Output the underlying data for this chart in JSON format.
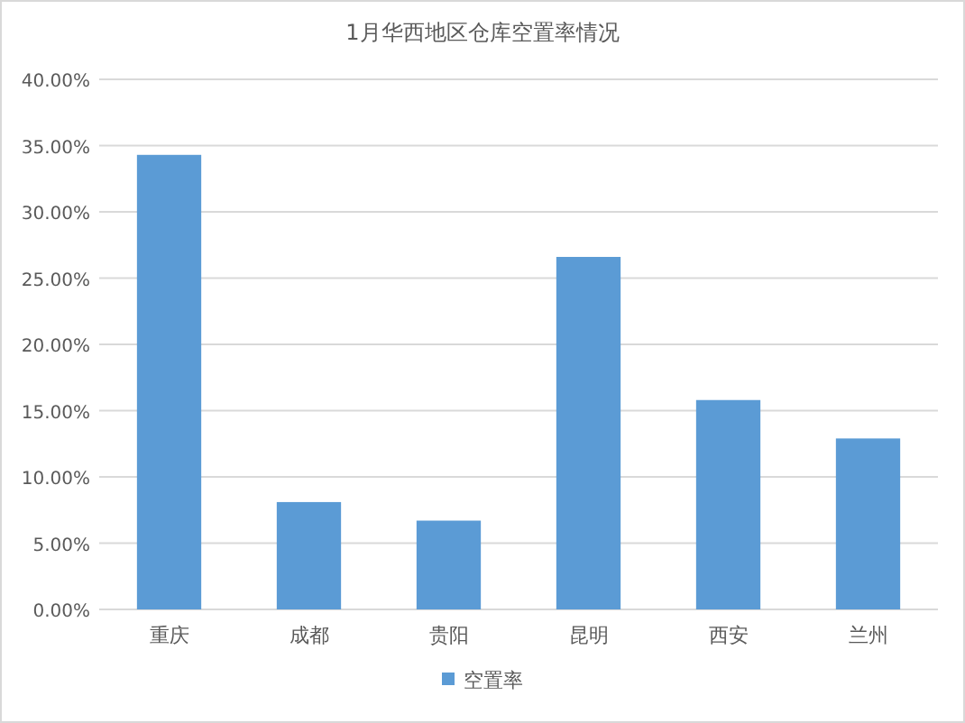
{
  "chart_data": {
    "type": "bar",
    "title": "1月华西地区仓库空置率情况",
    "categories": [
      "重庆",
      "成都",
      "贵阳",
      "昆明",
      "西安",
      "兰州"
    ],
    "series": [
      {
        "name": "空置率",
        "color": "#5b9bd5",
        "values": [
          34.3,
          8.1,
          6.7,
          26.6,
          15.8,
          12.9
        ]
      }
    ],
    "ylim": [
      0,
      40
    ],
    "yticks": [
      {
        "value": 0,
        "label": "0.00%"
      },
      {
        "value": 5,
        "label": "5.00%"
      },
      {
        "value": 10,
        "label": "10.00%"
      },
      {
        "value": 15,
        "label": "15.00%"
      },
      {
        "value": 20,
        "label": "20.00%"
      },
      {
        "value": 25,
        "label": "25.00%"
      },
      {
        "value": 30,
        "label": "30.00%"
      },
      {
        "value": 35,
        "label": "35.00%"
      },
      {
        "value": 40,
        "label": "40.00%"
      }
    ],
    "grid": "y",
    "legend": "bottom"
  }
}
